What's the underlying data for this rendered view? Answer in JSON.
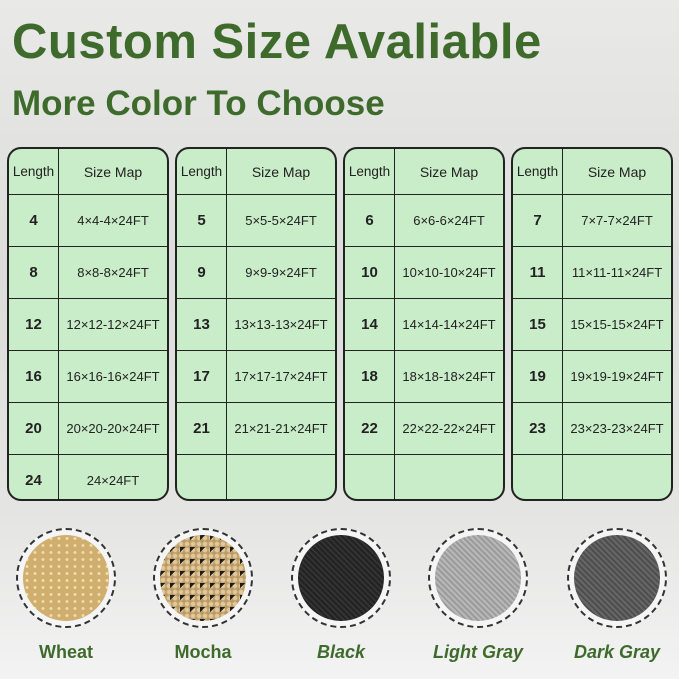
{
  "title": "Custom Size Avaliable",
  "subtitle": "More Color To Choose",
  "table_header": {
    "length": "Length",
    "size_map": "Size Map"
  },
  "tables": [
    [
      [
        "4",
        "4×4-4×24FT"
      ],
      [
        "8",
        "8×8-8×24FT"
      ],
      [
        "12",
        "12×12-12×24FT"
      ],
      [
        "16",
        "16×16-16×24FT"
      ],
      [
        "20",
        "20×20-20×24FT"
      ],
      [
        "24",
        "24×24FT"
      ]
    ],
    [
      [
        "5",
        "5×5-5×24FT"
      ],
      [
        "9",
        "9×9-9×24FT"
      ],
      [
        "13",
        "13×13-13×24FT"
      ],
      [
        "17",
        "17×17-17×24FT"
      ],
      [
        "21",
        "21×21-21×24FT"
      ],
      [
        "",
        ""
      ]
    ],
    [
      [
        "6",
        "6×6-6×24FT"
      ],
      [
        "10",
        "10×10-10×24FT"
      ],
      [
        "14",
        "14×14-14×24FT"
      ],
      [
        "18",
        "18×18-18×24FT"
      ],
      [
        "22",
        "22×22-22×24FT"
      ],
      [
        "",
        ""
      ]
    ],
    [
      [
        "7",
        "7×7-7×24FT"
      ],
      [
        "11",
        "11×11-11×24FT"
      ],
      [
        "15",
        "15×15-15×24FT"
      ],
      [
        "19",
        "19×19-19×24FT"
      ],
      [
        "23",
        "23×23-23×24FT"
      ],
      [
        "",
        ""
      ]
    ]
  ],
  "colors": [
    {
      "name": "Wheat",
      "hex": "#dcc08a",
      "italic": false
    },
    {
      "name": "Mocha",
      "hex": "#8a7556",
      "italic": false
    },
    {
      "name": "Black",
      "hex": "#2a2a2a",
      "italic": true
    },
    {
      "name": "Light Gray",
      "hex": "#a9a9a9",
      "italic": true
    },
    {
      "name": "Dark Gray",
      "hex": "#5b5b5b",
      "italic": true
    }
  ]
}
